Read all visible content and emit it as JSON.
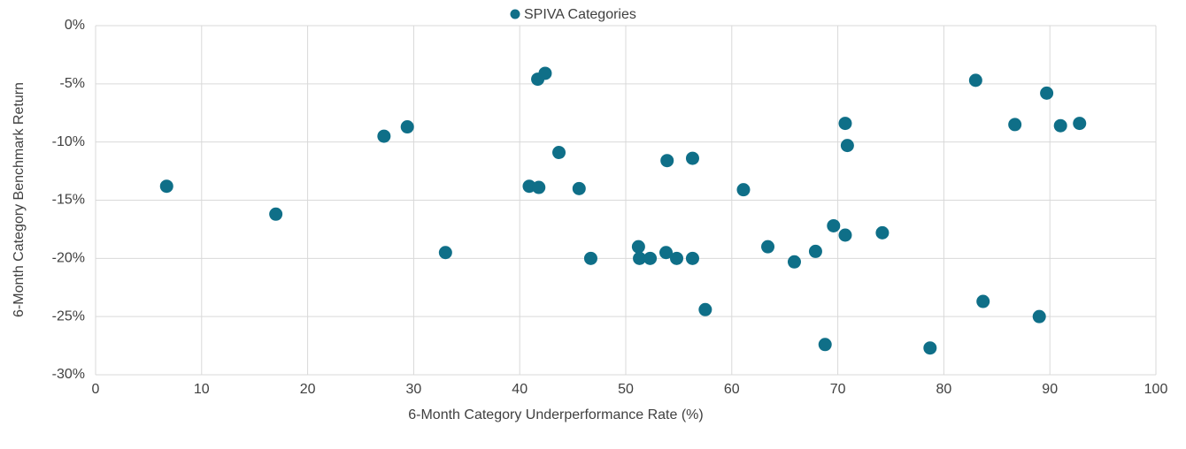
{
  "chart_data": {
    "type": "scatter",
    "x_label": "6-Month Category Underperformance Rate (%)",
    "y_label": "6-Month Category Benchmark Return",
    "legend": "top",
    "grid": true,
    "series": [
      {
        "name": "SPIVA Categories",
        "color": "#0f6f88",
        "x": [
          6.7,
          17.0,
          27.2,
          29.4,
          33.0,
          41.7,
          42.4,
          43.7,
          40.9,
          41.8,
          45.6,
          46.7,
          51.2,
          51.3,
          52.3,
          53.8,
          54.8,
          56.3,
          53.9,
          56.3,
          57.5,
          61.1,
          63.4,
          65.9,
          67.9,
          68.8,
          69.6,
          70.7,
          70.9,
          70.7,
          74.2,
          78.7,
          83.0,
          83.7,
          86.7,
          89.7,
          91.0,
          92.8,
          89.0
        ],
        "values": [
          -13.8,
          -16.2,
          -9.5,
          -8.7,
          -19.5,
          -4.6,
          -4.1,
          -10.9,
          -13.8,
          -13.9,
          -14.0,
          -20.0,
          -19.0,
          -20.0,
          -20.0,
          -19.5,
          -20.0,
          -20.0,
          -11.6,
          -11.4,
          -24.4,
          -14.1,
          -19.0,
          -20.3,
          -19.4,
          -27.4,
          -17.2,
          -8.4,
          -10.3,
          -18.0,
          -17.8,
          -27.7,
          -4.7,
          -23.7,
          -8.5,
          -5.8,
          -8.6,
          -8.4,
          -25.0
        ]
      }
    ],
    "xlim": [
      0,
      100
    ],
    "xticks": [
      0,
      10,
      20,
      30,
      40,
      50,
      60,
      70,
      80,
      90,
      100
    ],
    "ylim": [
      -30,
      0
    ],
    "yticks": [
      {
        "value": -30,
        "label": "-30%"
      },
      {
        "value": -25,
        "label": "-25%"
      },
      {
        "value": -20,
        "label": "-20%"
      },
      {
        "value": -15,
        "label": "-15%"
      },
      {
        "value": -10,
        "label": "-10%"
      },
      {
        "value": -5,
        "label": "-5%"
      },
      {
        "value": 0,
        "label": "0%"
      }
    ]
  }
}
